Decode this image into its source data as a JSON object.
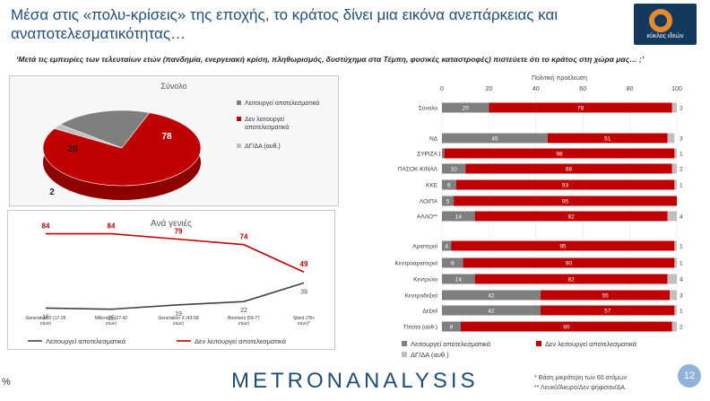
{
  "title": "Μέσα στις «πολυ-κρίσεις» της εποχής, το κράτος δίνει μια εικόνα ανεπάρκειας και αναποτελεσματικότητας…",
  "subtitle": "‘Μετά τις εμπειρίες των τελευταίων ετών (πανδημία, ενεργειακή κρίση, πληθωρισμός, δυστύχημα στα Τέμπη, φυσικές καταστροφές) πιστεύετε ότι το κράτος στη χώρα μας… ;’",
  "logo_text": "κύκλος ιδεών",
  "footer": {
    "brand": "METRONANALYSIS",
    "note1": "* Βάση μικρότερη των 60 ατόμων",
    "note2": "** Λευκό/Άκυρο/Δεν ψήφισαν/ΔΑ",
    "page": "12",
    "percent_mark": "%"
  },
  "colors": {
    "effective": "#7f7f7f",
    "not_effective": "#c00000",
    "dk": "#bfbfbf",
    "title": "#1f4e79"
  },
  "chart_data": [
    {
      "type": "pie",
      "title": "Σύνολο",
      "slices": [
        {
          "label": "Λειτουργεί αποτελεσματικά",
          "value": 20
        },
        {
          "label": "Δεν λειτουργεί αποτελεσματικά",
          "value": 78
        },
        {
          "label": "ΔΓ/ΔΑ (αυθ.)",
          "value": 2
        }
      ]
    },
    {
      "type": "line",
      "title": "Ανά γενιές",
      "categories": [
        "Generation Z (17-26 ετών)",
        "Millenials (27-42 ετών)",
        "Generation X (43-58 ετών)",
        "Boomers (59-77 ετών)",
        "Silent (78+ ετών)*"
      ],
      "series": [
        {
          "name": "Λειτουργεί αποτελεσματικά",
          "values": [
            16,
            15,
            19,
            22,
            39
          ]
        },
        {
          "name": "Δεν λειτουργεί αποτελεσματικά",
          "values": [
            84,
            84,
            79,
            74,
            49
          ]
        }
      ]
    },
    {
      "type": "bar",
      "stacked": "horizontal",
      "xlabel": "Πολιτική προέλευση",
      "xlim": [
        0,
        100
      ],
      "xticks": [
        "0",
        "20",
        "40",
        "60",
        "80",
        "100"
      ],
      "categories": [
        "Σύνολο",
        "ΝΔ",
        "ΣΥΡΙΖΑ",
        "ΠΑΣΟΚ-ΚΙΝΑΛ",
        "ΚΚΕ",
        "ΛΟΙΠΑ",
        "ΑΛΛΟ**",
        "Αριστεροί",
        "Κεντροαριστεροί",
        "Κεντρώοι",
        "Κεντροδεξιοί",
        "Δεξιοί",
        "Τίποτα (αυθ.)"
      ],
      "series": [
        {
          "name": "Λειτουργεί αποτελεσματικά",
          "values": [
            20,
            45,
            1,
            10,
            6,
            5,
            14,
            4,
            9,
            14,
            42,
            42,
            8
          ]
        },
        {
          "name": "Δεν λειτουργεί αποτελεσματικά",
          "values": [
            78,
            51,
            98,
            88,
            93,
            95,
            82,
            95,
            90,
            82,
            55,
            57,
            90
          ]
        },
        {
          "name": "ΔΓ/ΔΑ (αυθ.)",
          "values": [
            2,
            3,
            1,
            2,
            1,
            0,
            4,
            1,
            1,
            4,
            3,
            1,
            2
          ]
        }
      ]
    }
  ]
}
